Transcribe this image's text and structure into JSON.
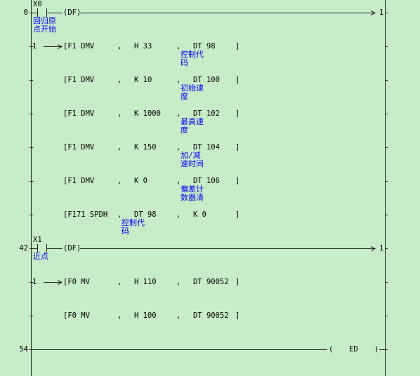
{
  "sep": ",",
  "close": "]",
  "rows": [
    {
      "step": "0",
      "contact": "X0",
      "comment": [
        "回归原",
        "点开始"
      ],
      "coil": "(DF)",
      "out": "1"
    },
    {
      "branch": "1",
      "op": "[F1 DMV",
      "args": [
        {
          "text": "H 33"
        },
        {
          "text": "DT 98",
          "note": [
            "控制代",
            "码"
          ]
        }
      ]
    },
    {
      "op": "[F1 DMV",
      "args": [
        {
          "text": "K 10"
        },
        {
          "text": "DT 100",
          "note": [
            "初始速",
            "度"
          ]
        }
      ]
    },
    {
      "op": "[F1 DMV",
      "args": [
        {
          "text": "K 1000"
        },
        {
          "text": "DT 102",
          "note": [
            "最高速",
            "度"
          ]
        }
      ]
    },
    {
      "op": "[F1 DMV",
      "args": [
        {
          "text": "K 150"
        },
        {
          "text": "DT 104",
          "note": [
            "加/减",
            "速时间"
          ]
        }
      ]
    },
    {
      "op": "[F1 DMV",
      "args": [
        {
          "text": "K 0"
        },
        {
          "text": "DT 106",
          "note": [
            "偏差计",
            "数器清"
          ]
        }
      ]
    },
    {
      "op": "[F171 SPDH",
      "args": [
        {
          "text": "DT 98",
          "note": [
            "控制代",
            "码"
          ]
        },
        {
          "text": "K 0"
        }
      ]
    },
    {
      "step": "42",
      "contact": "X1",
      "comment": [
        "近点"
      ],
      "coil": "(DF)",
      "out": "1"
    },
    {
      "branch": "1",
      "op": "[F0 MV",
      "args": [
        {
          "text": "H 110"
        },
        {
          "text": "DT 90052"
        }
      ]
    },
    {
      "op": "[F0 MV",
      "args": [
        {
          "text": "H 100"
        },
        {
          "text": "DT 90052"
        }
      ]
    }
  ],
  "end": {
    "step": "54",
    "open": "(",
    "label": "ED",
    "close": ")"
  }
}
